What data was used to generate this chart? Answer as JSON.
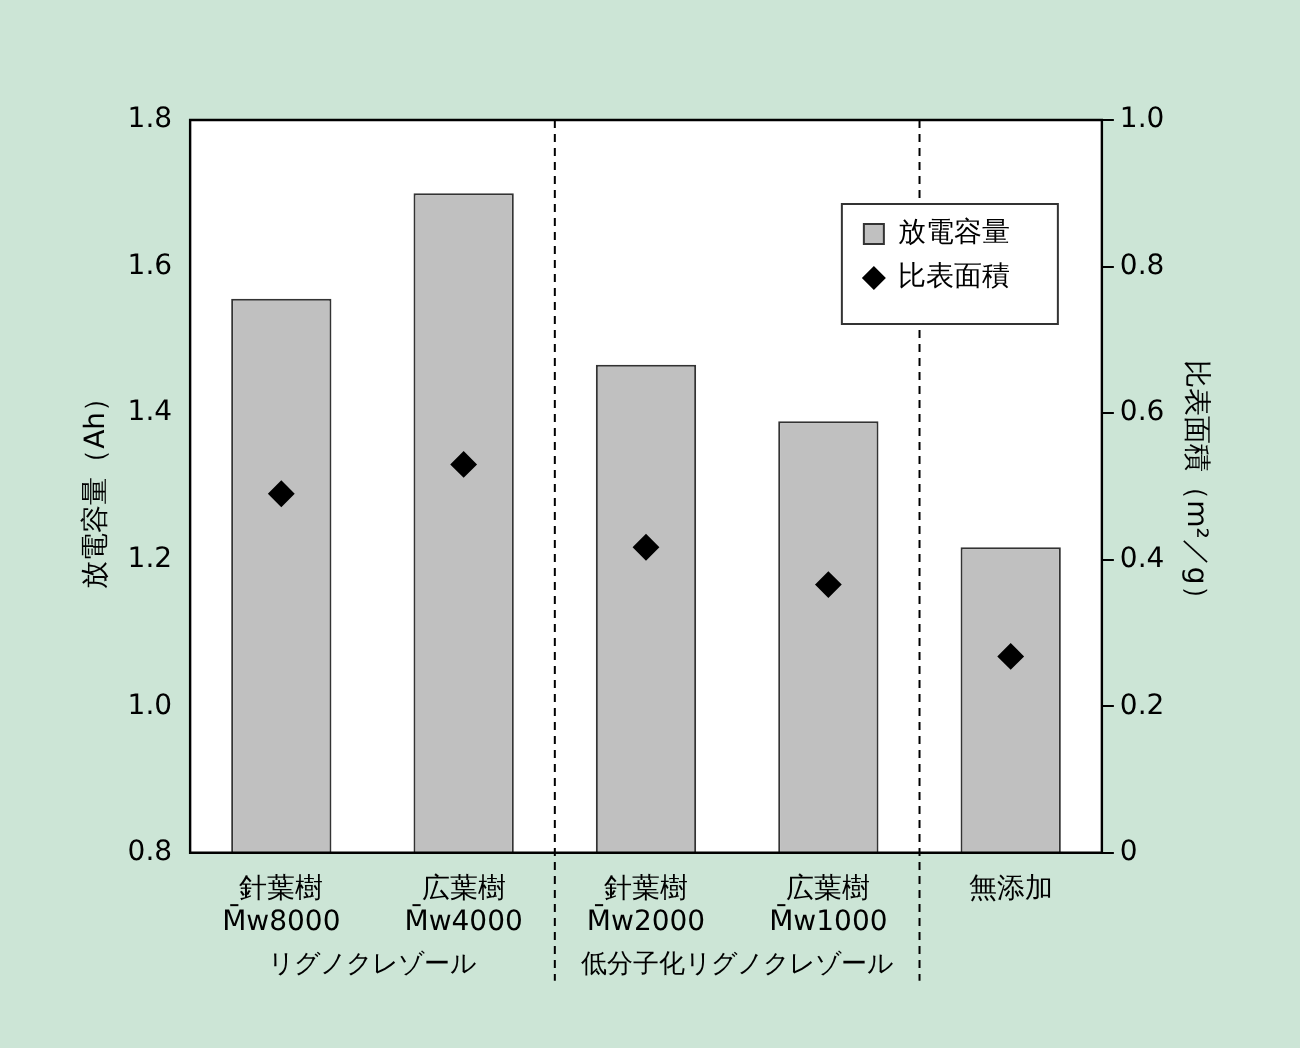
{
  "chart_data": {
    "type": "bar",
    "categories": [
      "針葉樹\nM̄w8000",
      "広葉樹\nM̄w4000",
      "針葉樹\nM̄w2000",
      "広葉樹\nM̄w1000",
      "無添加"
    ],
    "series": [
      {
        "name": "放電容量",
        "color": "#c0c0c0",
        "values": [
          1.556,
          1.7,
          1.466,
          1.389,
          1.217
        ]
      },
      {
        "name": "比表面積",
        "type": "scatter",
        "axis": "y2",
        "color": "#000000",
        "marker": "diamond",
        "values": [
          0.49,
          0.53,
          0.417,
          0.366,
          0.268
        ]
      }
    ],
    "ylabel": "放電容量（Ah）",
    "y2label": "比表面積（m²／g）",
    "ylim": [
      0.8,
      1.8
    ],
    "yticks": [
      {
        "value": 0.8,
        "label": "0.8"
      },
      {
        "value": 1,
        "label": "1.0"
      },
      1.2,
      1.4,
      1.6,
      1.8
    ],
    "y2lim": [
      0,
      1
    ],
    "y2ticks": [
      0,
      0.2,
      0.4,
      0.6,
      0.8,
      {
        "value": 1,
        "label": "1.0"
      }
    ],
    "annotations": [
      "リグノクレゾール",
      "低分子化リグノクレゾール"
    ],
    "legend": "top right",
    "grid": false
  }
}
